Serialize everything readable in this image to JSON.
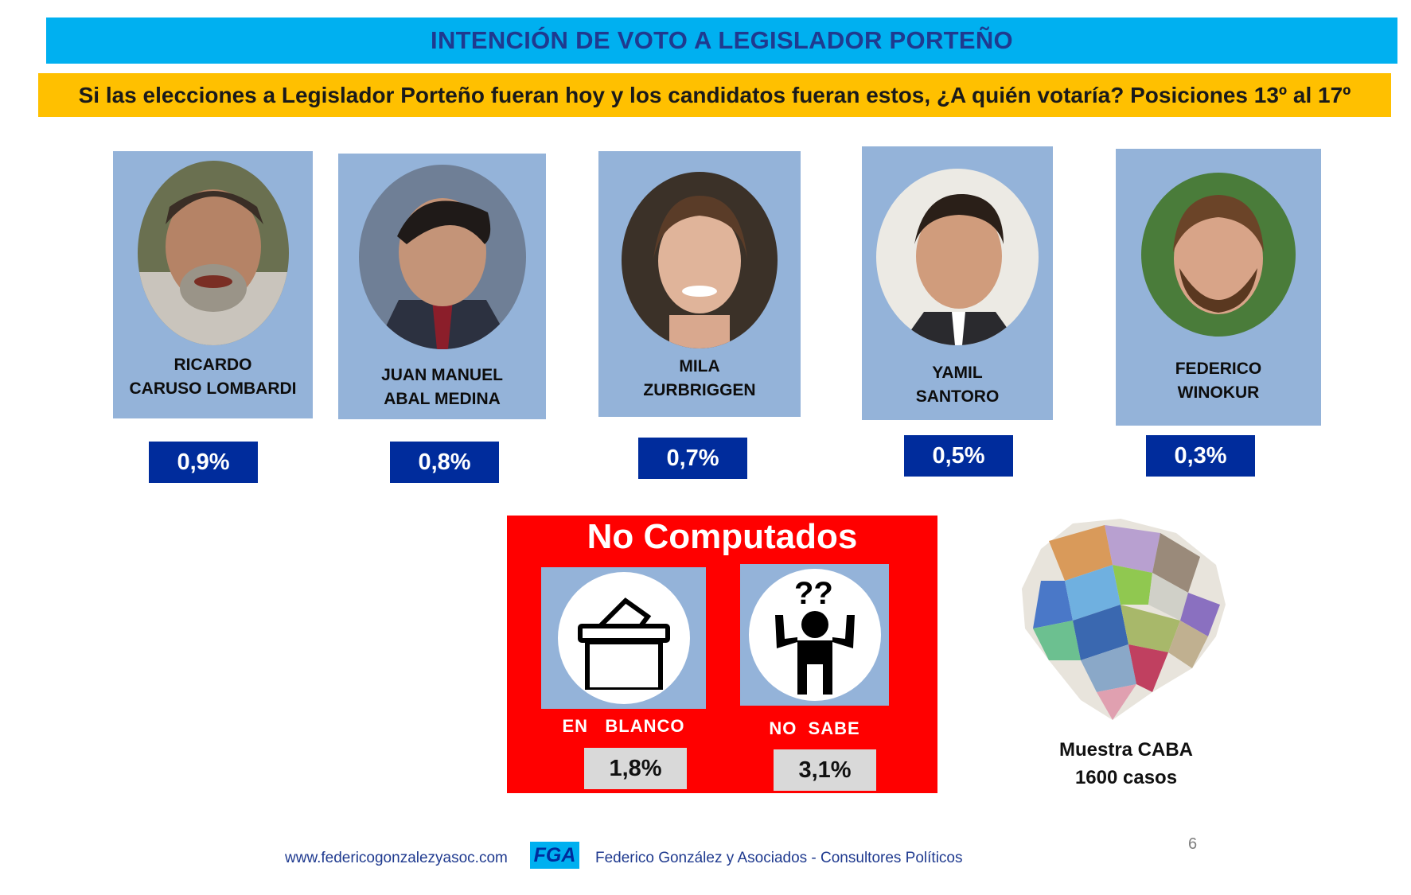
{
  "header": {
    "title": "INTENCIÓN DE VOTO A LEGISLADOR PORTEÑO",
    "subtitle": "Si las elecciones a Legislador Porteño fueran hoy y los candidatos fueran estos, ¿A quién votaría? Posiciones 13º al 17º"
  },
  "candidates": [
    {
      "name_line1": "RICARDO",
      "name_line2": "CARUSO LOMBARDI",
      "percent": "0,9%"
    },
    {
      "name_line1": "JUAN MANUEL",
      "name_line2": "ABAL MEDINA",
      "percent": "0,8%"
    },
    {
      "name_line1": "MILA",
      "name_line2": "ZURBRIGGEN",
      "percent": "0,7%"
    },
    {
      "name_line1": "YAMIL",
      "name_line2": "SANTORO",
      "percent": "0,5%"
    },
    {
      "name_line1": "FEDERICO",
      "name_line2": "WINOKUR",
      "percent": "0,3%"
    }
  ],
  "not_computed": {
    "title": "No Computados",
    "blank": {
      "label": "EN   BLANCO",
      "percent": "1,8%",
      "icon": "ballot-box-icon"
    },
    "dont_know": {
      "label": "NO  SABE",
      "percent": "3,1%",
      "icon": "confused-person-icon",
      "marks": "??"
    }
  },
  "sample": {
    "line1": "Muestra CABA",
    "line2": "1600 casos"
  },
  "footer": {
    "url": "www.federicogonzalezyasoc.com",
    "logo": "FGA",
    "firm": "Federico González y Asociados - Consultores Políticos",
    "page": "6"
  },
  "colors": {
    "title_bar": "#00b0f0",
    "subtitle_bar": "#ffc000",
    "card": "#94b3d9",
    "percent_box": "#002c9c",
    "not_computed_box": "#ff0000"
  }
}
